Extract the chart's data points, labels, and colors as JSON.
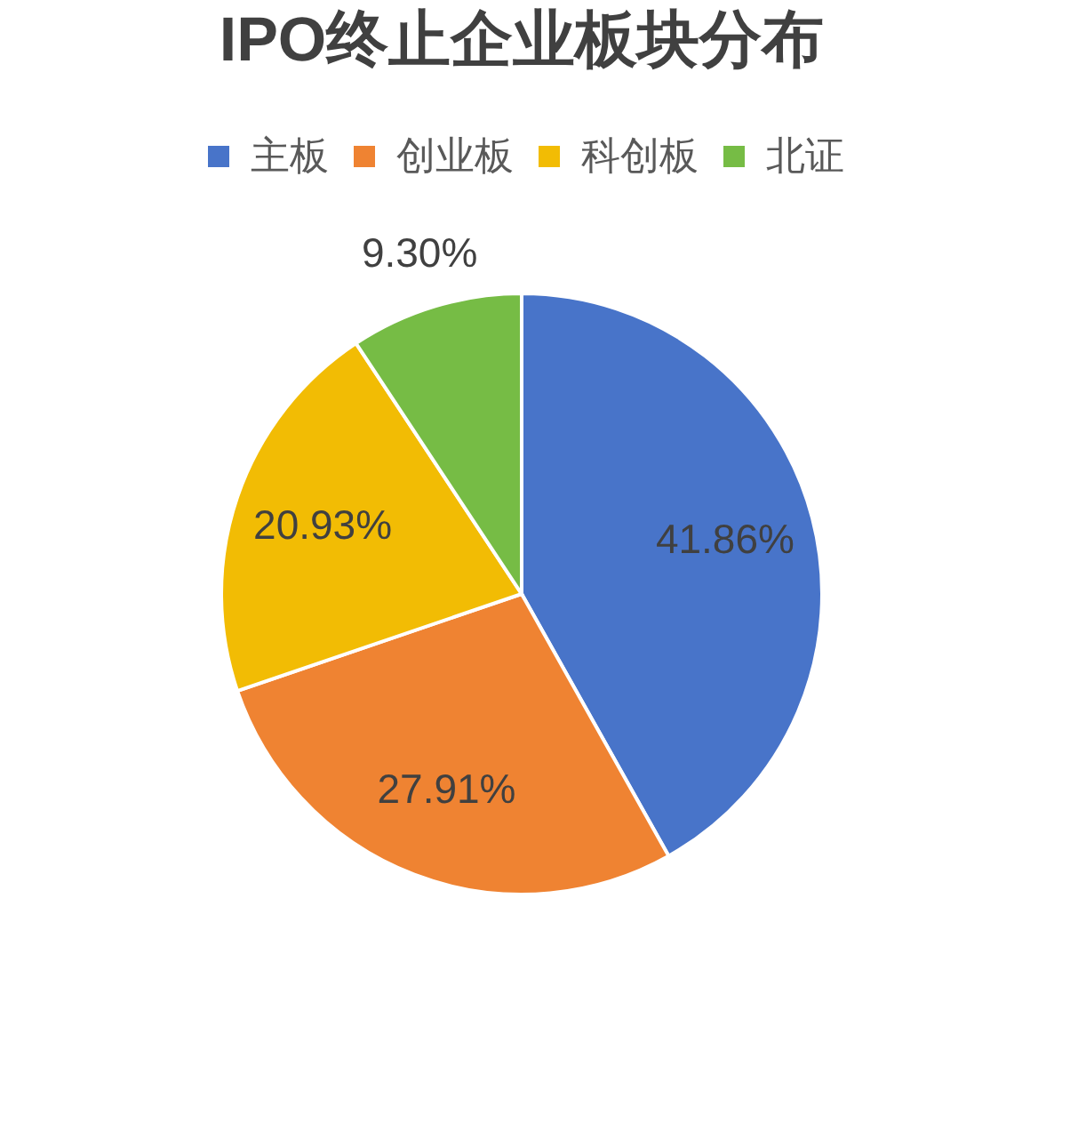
{
  "chart_data": {
    "type": "pie",
    "title": "IPO终止企业板块分布",
    "categories": [
      "主板",
      "创业板",
      "科创板",
      "北证"
    ],
    "values": [
      41.86,
      27.91,
      20.93,
      9.3
    ],
    "colors": [
      "#4874c9",
      "#ef8332",
      "#f2bc04",
      "#76bc45"
    ],
    "value_labels": [
      "41.86%",
      "27.91%",
      "20.93%",
      "9.30%"
    ],
    "legend": "top"
  }
}
